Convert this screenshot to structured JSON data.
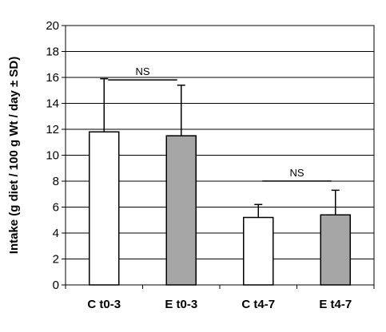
{
  "chart_data": {
    "type": "bar",
    "title": "",
    "xlabel": "",
    "ylabel": "Intake (g diet / 100 g Wt / day ± SD)",
    "ylim": [
      0,
      20
    ],
    "yticks": [
      0,
      2,
      4,
      6,
      8,
      10,
      12,
      14,
      16,
      18,
      20
    ],
    "grid": true,
    "legend": "none",
    "categories": [
      "C t0-3",
      "E t0-3",
      "C t4-7",
      "E t4-7"
    ],
    "values": [
      11.8,
      11.5,
      5.2,
      5.4
    ],
    "error_plus": [
      4.1,
      3.9,
      1.0,
      1.9
    ],
    "bar_colors": [
      "#ffffff",
      "#a6a6a6",
      "#ffffff",
      "#a6a6a6"
    ],
    "annotations": [
      {
        "text": "NS",
        "between": [
          0,
          1
        ],
        "y": 16.3
      },
      {
        "text": "NS",
        "between": [
          2,
          3
        ],
        "y": 8.5
      }
    ]
  }
}
